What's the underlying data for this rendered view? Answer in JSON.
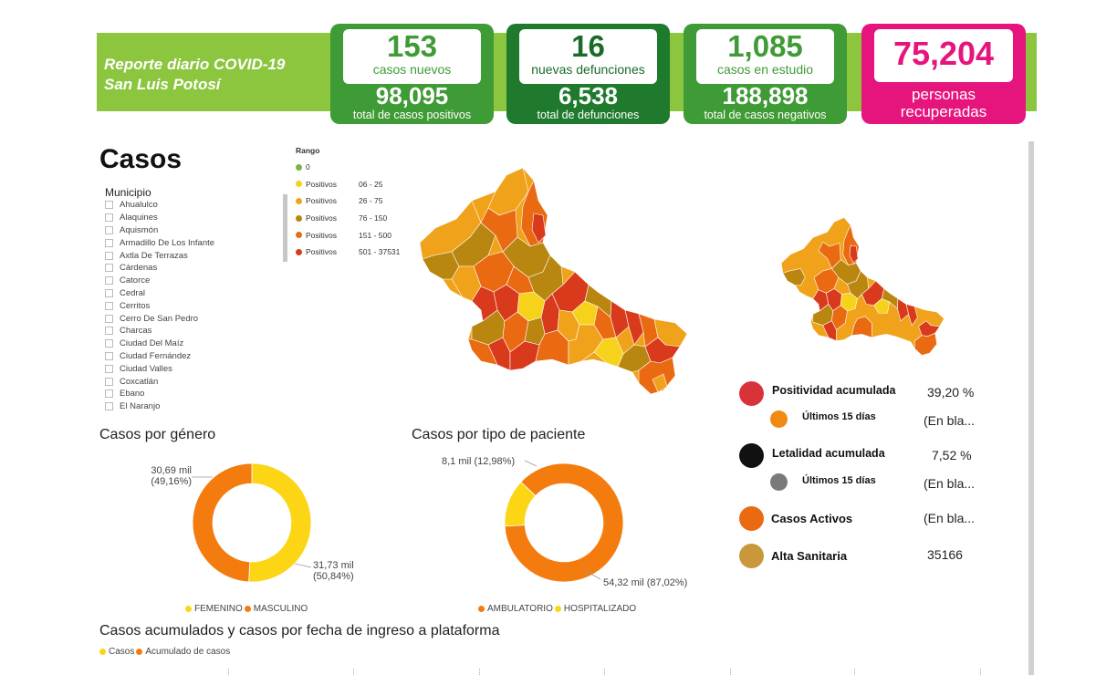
{
  "header": {
    "title_line1": "Reporte diario COVID-19",
    "title_line2": "San Luis Potosí",
    "cards": [
      {
        "top_value": "153",
        "top_label": "casos nuevos",
        "bottom_value": "98,095",
        "bottom_label": "total de casos positivos"
      },
      {
        "top_value": "16",
        "top_label": "nuevas defunciones",
        "bottom_value": "6,538",
        "bottom_label": "total de defunciones"
      },
      {
        "top_value": "1,085",
        "top_label": "casos en estudio",
        "bottom_value": "188,898",
        "bottom_label": "total de casos negativos"
      }
    ],
    "recovered": {
      "value": "75,204",
      "label_line1": "personas",
      "label_line2": "recuperadas"
    },
    "colors": {
      "banner": "#8cc63f",
      "card_green": "#3f9b35",
      "card_dark": "#1f7a2e",
      "card_pink": "#e6157e"
    }
  },
  "casos": {
    "title": "Casos",
    "municipio_label": "Municipio",
    "municipios": [
      "Ahualulco",
      "Alaquines",
      "Aquismón",
      "Armadillo De Los Infante",
      "Axtla De Terrazas",
      "Cárdenas",
      "Catorce",
      "Cedral",
      "Cerritos",
      "Cerro De San Pedro",
      "Charcas",
      "Ciudad Del Maíz",
      "Ciudad Fernández",
      "Ciudad Valles",
      "Coxcatlán",
      "Ebano",
      "El Naranjo"
    ]
  },
  "rango": {
    "title": "Rango",
    "items": [
      {
        "label": "0",
        "range": "",
        "color": "#7cb342"
      },
      {
        "label": "Positivos",
        "range": "06 - 25",
        "color": "#f6d21a"
      },
      {
        "label": "Positivos",
        "range": "26 - 75",
        "color": "#f0a21b"
      },
      {
        "label": "Positivos",
        "range": "76 - 150",
        "color": "#b9860f"
      },
      {
        "label": "Positivos",
        "range": "151 - 500",
        "color": "#ea6a12"
      },
      {
        "label": "Positivos",
        "range": "501 - 37531",
        "color": "#d93a1b"
      }
    ]
  },
  "indicators": {
    "positividad_label": "Positividad acumulada",
    "positividad_value": "39,20 %",
    "ultimos1_label": "Últimos 15 días",
    "ultimos1_value": "(En bla...",
    "letalidad_label": "Letalidad acumulada",
    "letalidad_value": "7,52 %",
    "ultimos2_label": "Últimos 15 días",
    "ultimos2_value": "(En bla...",
    "activos_label": "Casos Activos",
    "activos_value": "(En bla...",
    "alta_label": "Alta Sanitaria",
    "alta_value": "35166",
    "colors": {
      "positividad": "#d8333a",
      "ultimos1": "#f08a12",
      "letalidad": "#111111",
      "ultimos2": "#7a7a7a",
      "activos": "#ea6a12",
      "alta": "#c8983a"
    }
  },
  "chart_data": [
    {
      "type": "pie",
      "title": "Casos por género",
      "categories": [
        "FEMENINO",
        "MASCULINO"
      ],
      "values": [
        31.73,
        30.69
      ],
      "value_labels": [
        "31,73 mil",
        "30,69 mil"
      ],
      "percent_labels": [
        "(50,84%)",
        "(49,16%)"
      ],
      "colors": [
        "#fcd614",
        "#f47c0f"
      ],
      "legend": "bottom"
    },
    {
      "type": "pie",
      "title": "Casos por tipo de paciente",
      "categories": [
        "AMBULATORIO",
        "HOSPITALIZADO"
      ],
      "values": [
        54.32,
        8.1
      ],
      "value_labels": [
        "54,32 mil",
        "8,1 mil"
      ],
      "percent_labels": [
        "(87,02%)",
        "(12,98%)"
      ],
      "colors": [
        "#f47c0f",
        "#fcd614"
      ],
      "legend": "bottom"
    },
    {
      "type": "bar",
      "title": "Casos acumulados y casos por fecha de ingreso a plataforma",
      "series": [
        {
          "name": "Casos",
          "color": "#fcd614"
        },
        {
          "name": "Acumulado de casos",
          "color": "#f47c0f"
        }
      ],
      "legend": "top-left"
    }
  ]
}
